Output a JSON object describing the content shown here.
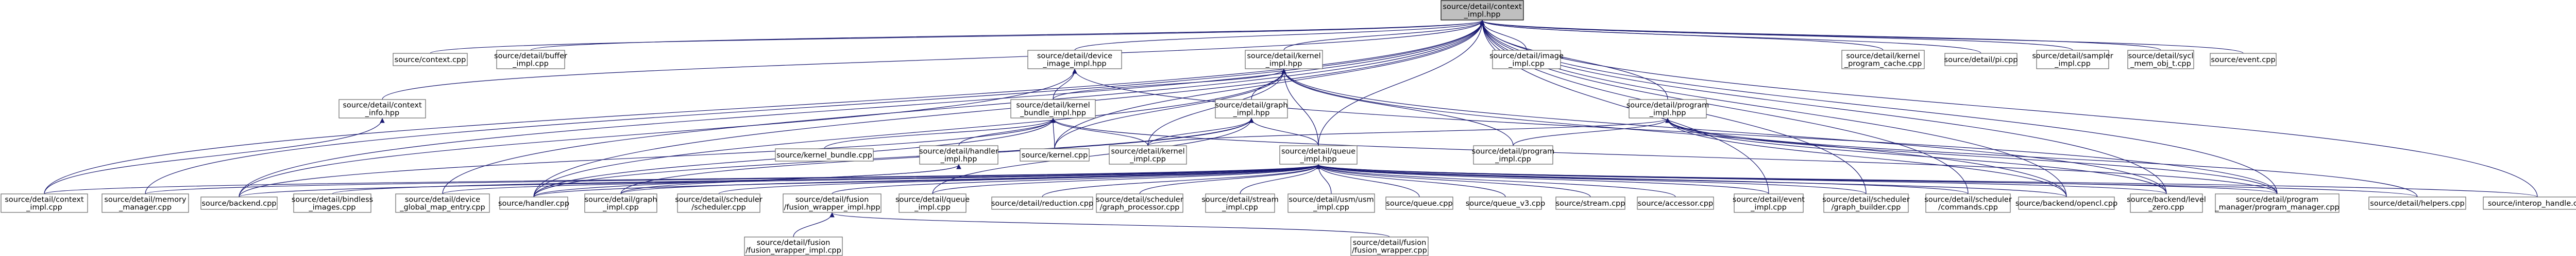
{
  "graph": {
    "colors": {
      "edge": "#191970",
      "node_fill": "#ffffff",
      "node_border": "#666666",
      "root_fill": "#bfbfbf",
      "root_border": "#000000",
      "text": "#000000"
    },
    "nodes": [
      {
        "id": "root",
        "lines": [
          "source/detail/context",
          "_impl.hpp"
        ],
        "root": true
      },
      {
        "id": "context_cpp",
        "lines": [
          "source/context.cpp"
        ]
      },
      {
        "id": "buffer_impl",
        "lines": [
          "source/detail/buffer",
          "_impl.cpp"
        ]
      },
      {
        "id": "device_image",
        "lines": [
          "source/detail/device",
          "_image_impl.hpp"
        ]
      },
      {
        "id": "kernel_impl_hpp",
        "lines": [
          "source/detail/kernel",
          "_impl.hpp"
        ]
      },
      {
        "id": "image_impl",
        "lines": [
          "source/detail/image",
          "_impl.cpp"
        ]
      },
      {
        "id": "kernel_prog_cache",
        "lines": [
          "source/detail/kernel",
          "_program_cache.cpp"
        ]
      },
      {
        "id": "pi_cpp",
        "lines": [
          "source/detail/pi.cpp"
        ]
      },
      {
        "id": "sampler_impl",
        "lines": [
          "source/detail/sampler",
          "_impl.cpp"
        ]
      },
      {
        "id": "mem_obj",
        "lines": [
          "source/detail/sycl",
          "_mem_obj_t.cpp"
        ]
      },
      {
        "id": "event_cpp",
        "lines": [
          "source/event.cpp"
        ]
      },
      {
        "id": "context_info",
        "lines": [
          "source/detail/context",
          "_info.hpp"
        ]
      },
      {
        "id": "kernel_bundle_hpp",
        "lines": [
          "source/detail/kernel",
          "_bundle_impl.hpp"
        ]
      },
      {
        "id": "graph_impl_hpp",
        "lines": [
          "source/detail/graph",
          "_impl.hpp"
        ]
      },
      {
        "id": "program_impl_hpp",
        "lines": [
          "source/detail/program",
          "_impl.hpp"
        ]
      },
      {
        "id": "kernel_bundle_cpp",
        "lines": [
          "source/kernel_bundle.cpp"
        ]
      },
      {
        "id": "handler_impl_hpp",
        "lines": [
          "source/detail/handler",
          "_impl.hpp"
        ]
      },
      {
        "id": "kernel_cpp",
        "lines": [
          "source/kernel.cpp"
        ]
      },
      {
        "id": "kernel_impl_cpp",
        "lines": [
          "source/detail/kernel",
          "_impl.cpp"
        ]
      },
      {
        "id": "queue_impl_hpp",
        "lines": [
          "source/detail/queue",
          "_impl.hpp"
        ]
      },
      {
        "id": "program_impl_cpp",
        "lines": [
          "source/detail/program",
          "_impl.cpp"
        ]
      },
      {
        "id": "context_impl_cpp",
        "lines": [
          "source/detail/context",
          "_impl.cpp"
        ]
      },
      {
        "id": "memory_manager",
        "lines": [
          "source/detail/memory",
          "_manager.cpp"
        ]
      },
      {
        "id": "backend_cpp",
        "lines": [
          "source/backend.cpp"
        ]
      },
      {
        "id": "bindless_images",
        "lines": [
          "source/detail/bindless",
          "_images.cpp"
        ]
      },
      {
        "id": "global_map",
        "lines": [
          "source/detail/device",
          "_global_map_entry.cpp"
        ]
      },
      {
        "id": "handler_cpp",
        "lines": [
          "source/handler.cpp"
        ]
      },
      {
        "id": "graph_impl_cpp",
        "lines": [
          "source/detail/graph",
          "_impl.cpp"
        ]
      },
      {
        "id": "scheduler_cpp",
        "lines": [
          "source/detail/scheduler",
          "/scheduler.cpp"
        ]
      },
      {
        "id": "fusion_wrapper_impl_hpp",
        "lines": [
          "source/detail/fusion",
          "/fusion_wrapper_impl.hpp"
        ]
      },
      {
        "id": "queue_impl_cpp",
        "lines": [
          "source/detail/queue",
          "_impl.cpp"
        ]
      },
      {
        "id": "reduction_cpp",
        "lines": [
          "source/detail/reduction.cpp"
        ]
      },
      {
        "id": "graph_processor",
        "lines": [
          "source/detail/scheduler",
          "/graph_processor.cpp"
        ]
      },
      {
        "id": "stream_impl",
        "lines": [
          "source/detail/stream",
          "_impl.cpp"
        ]
      },
      {
        "id": "usm_impl",
        "lines": [
          "source/detail/usm/usm",
          "_impl.cpp"
        ]
      },
      {
        "id": "queue_cpp",
        "lines": [
          "source/queue.cpp"
        ]
      },
      {
        "id": "queue_v3",
        "lines": [
          "source/queue_v3.cpp"
        ]
      },
      {
        "id": "stream_cpp",
        "lines": [
          "source/stream.cpp"
        ]
      },
      {
        "id": "accessor_cpp",
        "lines": [
          "source/accessor.cpp"
        ]
      },
      {
        "id": "event_impl",
        "lines": [
          "source/detail/event",
          "_impl.cpp"
        ]
      },
      {
        "id": "graph_builder",
        "lines": [
          "source/detail/scheduler",
          "/graph_builder.cpp"
        ]
      },
      {
        "id": "commands_cpp",
        "lines": [
          "source/detail/scheduler",
          "/commands.cpp"
        ]
      },
      {
        "id": "opencl_cpp",
        "lines": [
          "source/backend/opencl.cpp"
        ]
      },
      {
        "id": "level_zero",
        "lines": [
          "source/backend/level",
          "_zero.cpp"
        ]
      },
      {
        "id": "program_manager",
        "lines": [
          "source/detail/program",
          "_manager/program_manager.cpp"
        ]
      },
      {
        "id": "helpers_cpp",
        "lines": [
          "source/detail/helpers.cpp"
        ]
      },
      {
        "id": "interop_handle",
        "lines": [
          "source/interop_handle.cpp"
        ]
      },
      {
        "id": "fusion_wrapper_impl_cpp",
        "lines": [
          "source/detail/fusion",
          "/fusion_wrapper_impl.cpp"
        ]
      },
      {
        "id": "fusion_wrapper_cpp",
        "lines": [
          "source/detail/fusion",
          "/fusion_wrapper.cpp"
        ]
      }
    ],
    "edges": [
      [
        "root",
        "context_cpp"
      ],
      [
        "root",
        "buffer_impl"
      ],
      [
        "root",
        "device_image"
      ],
      [
        "root",
        "kernel_impl_hpp"
      ],
      [
        "root",
        "image_impl"
      ],
      [
        "root",
        "kernel_prog_cache"
      ],
      [
        "root",
        "pi_cpp"
      ],
      [
        "root",
        "sampler_impl"
      ],
      [
        "root",
        "mem_obj"
      ],
      [
        "root",
        "event_cpp"
      ],
      [
        "root",
        "context_info"
      ],
      [
        "root",
        "program_impl_hpp"
      ],
      [
        "root",
        "queue_impl_hpp"
      ],
      [
        "root",
        "context_impl_cpp"
      ],
      [
        "root",
        "memory_manager"
      ],
      [
        "root",
        "backend_cpp"
      ],
      [
        "root",
        "global_map"
      ],
      [
        "root",
        "handler_cpp"
      ],
      [
        "root",
        "event_impl"
      ],
      [
        "root",
        "opencl_cpp"
      ],
      [
        "root",
        "level_zero"
      ],
      [
        "root",
        "program_manager"
      ],
      [
        "root",
        "interop_handle"
      ],
      [
        "root",
        "graph_builder"
      ],
      [
        "root",
        "commands_cpp"
      ],
      [
        "root",
        "kernel_cpp"
      ],
      [
        "context_info",
        "context_impl_cpp"
      ],
      [
        "device_image",
        "kernel_bundle_hpp"
      ],
      [
        "device_image",
        "program_manager"
      ],
      [
        "device_image",
        "backend_cpp"
      ],
      [
        "kernel_impl_hpp",
        "kernel_bundle_hpp"
      ],
      [
        "kernel_impl_hpp",
        "graph_impl_hpp"
      ],
      [
        "kernel_impl_hpp",
        "queue_impl_hpp"
      ],
      [
        "kernel_impl_hpp",
        "kernel_impl_cpp"
      ],
      [
        "kernel_impl_hpp",
        "kernel_cpp"
      ],
      [
        "kernel_impl_hpp",
        "program_impl_cpp"
      ],
      [
        "kernel_impl_hpp",
        "opencl_cpp"
      ],
      [
        "kernel_impl_hpp",
        "level_zero"
      ],
      [
        "kernel_impl_hpp",
        "handler_cpp"
      ],
      [
        "kernel_bundle_hpp",
        "kernel_bundle_cpp"
      ],
      [
        "kernel_bundle_hpp",
        "handler_impl_hpp"
      ],
      [
        "kernel_bundle_hpp",
        "kernel_cpp"
      ],
      [
        "kernel_bundle_hpp",
        "kernel_impl_cpp"
      ],
      [
        "kernel_bundle_hpp",
        "backend_cpp"
      ],
      [
        "kernel_bundle_hpp",
        "handler_cpp"
      ],
      [
        "kernel_bundle_hpp",
        "program_manager"
      ],
      [
        "handler_impl_hpp",
        "handler_cpp"
      ],
      [
        "handler_impl_hpp",
        "graph_impl_cpp"
      ],
      [
        "graph_impl_hpp",
        "queue_impl_hpp"
      ],
      [
        "graph_impl_hpp",
        "handler_cpp"
      ],
      [
        "graph_impl_hpp",
        "graph_impl_cpp"
      ],
      [
        "graph_impl_hpp",
        "kernel_impl_cpp"
      ],
      [
        "graph_impl_hpp",
        "queue_impl_cpp"
      ],
      [
        "program_impl_hpp",
        "program_impl_cpp"
      ],
      [
        "program_impl_hpp",
        "kernel_impl_cpp"
      ],
      [
        "program_impl_hpp",
        "opencl_cpp"
      ],
      [
        "program_impl_hpp",
        "level_zero"
      ],
      [
        "program_impl_hpp",
        "program_manager"
      ],
      [
        "program_impl_hpp",
        "helpers_cpp"
      ],
      [
        "queue_impl_hpp",
        "context_impl_cpp"
      ],
      [
        "queue_impl_hpp",
        "memory_manager"
      ],
      [
        "queue_impl_hpp",
        "backend_cpp"
      ],
      [
        "queue_impl_hpp",
        "bindless_images"
      ],
      [
        "queue_impl_hpp",
        "global_map"
      ],
      [
        "queue_impl_hpp",
        "handler_cpp"
      ],
      [
        "queue_impl_hpp",
        "graph_impl_cpp"
      ],
      [
        "queue_impl_hpp",
        "scheduler_cpp"
      ],
      [
        "queue_impl_hpp",
        "fusion_wrapper_impl_hpp"
      ],
      [
        "queue_impl_hpp",
        "queue_impl_cpp"
      ],
      [
        "queue_impl_hpp",
        "reduction_cpp"
      ],
      [
        "queue_impl_hpp",
        "graph_processor"
      ],
      [
        "queue_impl_hpp",
        "stream_impl"
      ],
      [
        "queue_impl_hpp",
        "usm_impl"
      ],
      [
        "queue_impl_hpp",
        "queue_cpp"
      ],
      [
        "queue_impl_hpp",
        "queue_v3"
      ],
      [
        "queue_impl_hpp",
        "stream_cpp"
      ],
      [
        "queue_impl_hpp",
        "accessor_cpp"
      ],
      [
        "queue_impl_hpp",
        "event_impl"
      ],
      [
        "queue_impl_hpp",
        "graph_builder"
      ],
      [
        "queue_impl_hpp",
        "commands_cpp"
      ],
      [
        "queue_impl_hpp",
        "opencl_cpp"
      ],
      [
        "queue_impl_hpp",
        "level_zero"
      ],
      [
        "queue_impl_hpp",
        "program_manager"
      ],
      [
        "queue_impl_hpp",
        "helpers_cpp"
      ],
      [
        "queue_impl_hpp",
        "interop_handle"
      ],
      [
        "fusion_wrapper_impl_hpp",
        "fusion_wrapper_impl_cpp"
      ],
      [
        "fusion_wrapper_impl_hpp",
        "fusion_wrapper_cpp"
      ]
    ]
  }
}
